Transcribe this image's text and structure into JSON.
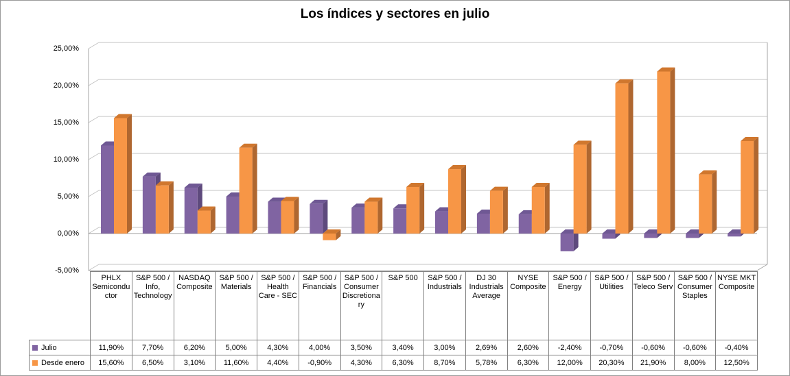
{
  "title": "Los índices y sectores en julio",
  "y_axis": {
    "ticks": [
      "25,00%",
      "20,00%",
      "15,00%",
      "10,00%",
      "5,00%",
      "0,00%",
      "-5,00%"
    ],
    "tick_values": [
      25,
      20,
      15,
      10,
      5,
      0,
      -5
    ]
  },
  "chart_data": {
    "type": "bar",
    "style_3d": true,
    "title": "Los índices y sectores en julio",
    "categories": [
      "PHLX Semiconductor",
      "S&P 500 / Info, Technology",
      "NASDAQ Composite",
      "S&P 500 / Materials",
      "S&P 500 / Health Care - SEC",
      "S&P 500 / Financials",
      "S&P 500 / Consumer Discretionary",
      "S&P 500",
      "S&P 500 / Industrials",
      "DJ 30 Industrials Average",
      "NYSE Composite",
      "S&P 500 / Energy",
      "S&P 500 / Utilities",
      "S&P 500 / Teleco Serv",
      "S&P 500 / Consumer Staples",
      "NYSE MKT Composite"
    ],
    "series": [
      {
        "name": "Julio",
        "color": "#8064A2",
        "values": [
          11.9,
          7.7,
          6.2,
          5.0,
          4.3,
          4.0,
          3.5,
          3.4,
          3.0,
          2.69,
          2.6,
          -2.4,
          -0.7,
          -0.6,
          -0.6,
          -0.4
        ]
      },
      {
        "name": "Desde enero",
        "color": "#F79646",
        "values": [
          15.6,
          6.5,
          3.1,
          11.6,
          4.4,
          -0.9,
          4.3,
          6.3,
          8.7,
          5.78,
          6.3,
          12.0,
          20.3,
          21.9,
          8.0,
          12.5
        ]
      }
    ],
    "ylim": [
      -5,
      25
    ],
    "y_step": 5,
    "grid": true,
    "value_format": "0,00%",
    "legend_position": "data-table-left"
  },
  "table": {
    "rows": [
      {
        "label": "Julio",
        "swatch_color": "#8064A2",
        "values": [
          "11,90%",
          "7,70%",
          "6,20%",
          "5,00%",
          "4,30%",
          "4,00%",
          "3,50%",
          "3,40%",
          "3,00%",
          "2,69%",
          "2,60%",
          "-2,40%",
          "-0,70%",
          "-0,60%",
          "-0,60%",
          "-0,40%"
        ]
      },
      {
        "label": "Desde enero",
        "swatch_color": "#F79646",
        "values": [
          "15,60%",
          "6,50%",
          "3,10%",
          "11,60%",
          "4,40%",
          "-0,90%",
          "4,30%",
          "6,30%",
          "8,70%",
          "5,78%",
          "6,30%",
          "12,00%",
          "20,30%",
          "21,90%",
          "8,00%",
          "12,50%"
        ]
      }
    ]
  },
  "style": {
    "series_shading": [
      {
        "front": "#8064A2",
        "cap": "#6F5894",
        "side": "#5E4A7D"
      },
      {
        "front": "#F79646",
        "cap": "#D0772E",
        "side": "#AF6730"
      }
    ],
    "gridline_color": "#C3C3C3",
    "frame_color": "#A6A6A6",
    "zero_line_color": "#9C9C9C",
    "table_border_color": "#808080",
    "text_color": "#000000",
    "background": "#FFFFFF"
  }
}
